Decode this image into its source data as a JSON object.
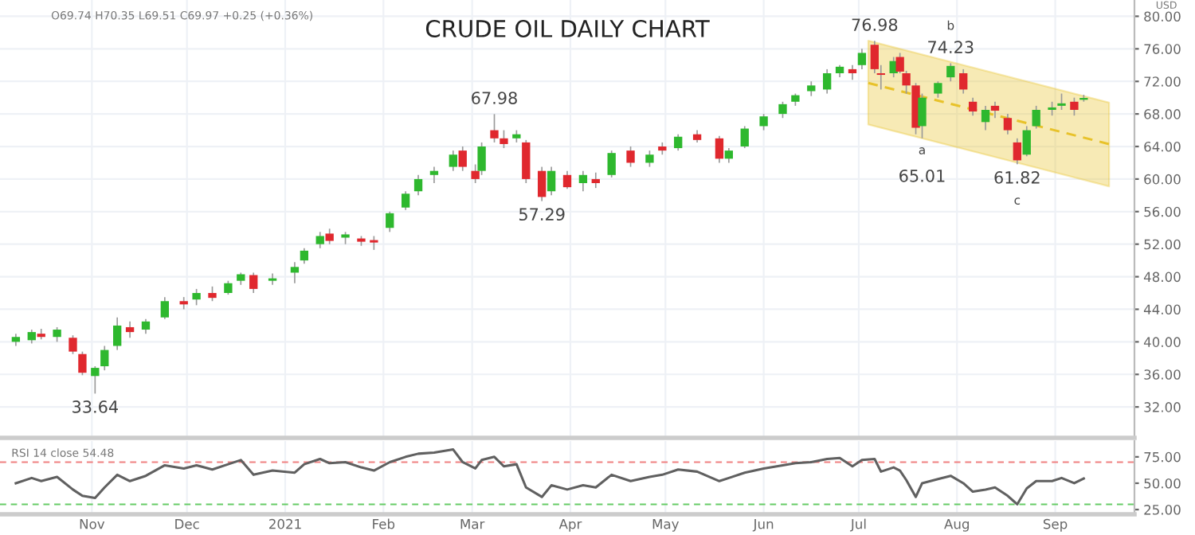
{
  "chart_data": [
    {
      "type": "candlestick",
      "title": "CRUDE OIL DAILY CHART",
      "x": [
        "2020-10-08",
        "2020-10-13",
        "2020-10-16",
        "2020-10-21",
        "2020-10-26",
        "2020-10-29",
        "2020-11-02",
        "2020-11-05",
        "2020-11-09",
        "2020-11-13",
        "2020-11-18",
        "2020-11-24",
        "2020-11-30",
        "2020-12-04",
        "2020-12-09",
        "2020-12-14",
        "2020-12-18",
        "2020-12-22",
        "2020-12-28",
        "2021-01-04",
        "2021-01-07",
        "2021-01-12",
        "2021-01-15",
        "2021-01-20",
        "2021-01-25",
        "2021-01-29",
        "2021-02-03",
        "2021-02-08",
        "2021-02-12",
        "2021-02-17",
        "2021-02-23",
        "2021-02-26",
        "2021-03-02",
        "2021-03-04",
        "2021-03-08",
        "2021-03-11",
        "2021-03-15",
        "2021-03-18",
        "2021-03-23",
        "2021-03-26",
        "2021-03-31",
        "2021-04-05",
        "2021-04-09",
        "2021-04-14",
        "2021-04-20",
        "2021-04-26",
        "2021-04-30",
        "2021-05-05",
        "2021-05-11",
        "2021-05-18",
        "2021-05-21",
        "2021-05-26",
        "2021-06-01",
        "2021-06-07",
        "2021-06-11",
        "2021-06-16",
        "2021-06-21",
        "2021-06-25",
        "2021-06-29",
        "2021-07-02",
        "2021-07-06",
        "2021-07-08",
        "2021-07-12",
        "2021-07-14",
        "2021-07-16",
        "2021-07-19",
        "2021-07-21",
        "2021-07-26",
        "2021-07-30",
        "2021-08-03",
        "2021-08-06",
        "2021-08-10",
        "2021-08-13",
        "2021-08-17",
        "2021-08-20",
        "2021-08-23",
        "2021-08-26",
        "2021-08-31",
        "2021-09-03",
        "2021-09-07",
        "2021-09-10"
      ],
      "ohlc": [
        [
          40.0,
          41.0,
          39.5,
          40.6
        ],
        [
          40.2,
          41.5,
          39.8,
          41.2
        ],
        [
          41.0,
          41.6,
          40.3,
          40.6
        ],
        [
          40.6,
          41.8,
          40.0,
          41.5
        ],
        [
          40.5,
          40.8,
          38.5,
          38.8
        ],
        [
          38.5,
          38.8,
          35.9,
          36.2
        ],
        [
          35.8,
          37.0,
          33.64,
          36.8
        ],
        [
          37.0,
          39.5,
          36.5,
          39.0
        ],
        [
          39.5,
          43.0,
          39.0,
          42.0
        ],
        [
          41.8,
          42.5,
          40.5,
          41.2
        ],
        [
          41.5,
          42.8,
          41.0,
          42.5
        ],
        [
          43.0,
          45.5,
          42.8,
          45.0
        ],
        [
          45.0,
          45.5,
          44.0,
          44.6
        ],
        [
          45.2,
          46.5,
          44.5,
          46.0
        ],
        [
          46.0,
          46.8,
          45.0,
          45.4
        ],
        [
          46.0,
          47.5,
          45.8,
          47.2
        ],
        [
          47.5,
          48.5,
          47.0,
          48.3
        ],
        [
          48.2,
          48.5,
          46.0,
          46.5
        ],
        [
          47.5,
          48.4,
          47.0,
          47.8
        ],
        [
          48.5,
          49.8,
          47.2,
          49.2
        ],
        [
          50.0,
          51.5,
          49.6,
          51.2
        ],
        [
          52.0,
          53.5,
          51.5,
          53.0
        ],
        [
          53.3,
          53.9,
          52.0,
          52.4
        ],
        [
          52.8,
          53.5,
          52.0,
          53.2
        ],
        [
          52.7,
          53.0,
          51.8,
          52.3
        ],
        [
          52.5,
          53.0,
          51.3,
          52.2
        ],
        [
          54.0,
          56.0,
          53.5,
          55.8
        ],
        [
          56.5,
          58.5,
          56.2,
          58.2
        ],
        [
          58.5,
          60.5,
          58.0,
          60.0
        ],
        [
          60.5,
          61.5,
          59.5,
          61.0
        ],
        [
          61.5,
          63.5,
          61.0,
          63.0
        ],
        [
          63.5,
          64.0,
          61.0,
          61.5
        ],
        [
          61.0,
          61.8,
          59.5,
          60.0
        ],
        [
          61.0,
          64.5,
          60.5,
          64.0
        ],
        [
          66.0,
          67.98,
          64.5,
          65.0
        ],
        [
          65.0,
          66.0,
          63.8,
          64.3
        ],
        [
          65.0,
          66.0,
          64.5,
          65.5
        ],
        [
          64.5,
          64.8,
          59.5,
          60.0
        ],
        [
          61.0,
          61.5,
          57.29,
          57.8
        ],
        [
          58.5,
          61.5,
          58.0,
          61.0
        ],
        [
          60.5,
          61.0,
          58.8,
          59.0
        ],
        [
          59.5,
          61.0,
          58.5,
          60.5
        ],
        [
          60.0,
          60.8,
          58.9,
          59.5
        ],
        [
          60.5,
          63.5,
          60.2,
          63.2
        ],
        [
          63.5,
          64.0,
          61.5,
          62.0
        ],
        [
          62.0,
          63.5,
          61.5,
          63.0
        ],
        [
          64.0,
          64.5,
          63.0,
          63.5
        ],
        [
          63.8,
          65.5,
          63.5,
          65.2
        ],
        [
          65.5,
          66.0,
          64.5,
          64.8
        ],
        [
          65.0,
          65.3,
          62.0,
          62.5
        ],
        [
          62.5,
          63.8,
          62.0,
          63.5
        ],
        [
          64.0,
          66.5,
          63.8,
          66.2
        ],
        [
          66.5,
          68.0,
          66.0,
          67.7
        ],
        [
          68.0,
          69.5,
          67.5,
          69.2
        ],
        [
          69.5,
          70.5,
          69.0,
          70.3
        ],
        [
          70.8,
          72.0,
          70.2,
          71.5
        ],
        [
          71.0,
          73.5,
          70.5,
          73.0
        ],
        [
          73.0,
          74.0,
          72.5,
          73.8
        ],
        [
          73.5,
          74.0,
          72.2,
          73.0
        ],
        [
          74.0,
          76.0,
          73.5,
          75.5
        ],
        [
          76.5,
          76.98,
          73.0,
          73.5
        ],
        [
          73.0,
          74.0,
          71.0,
          72.8
        ],
        [
          73.0,
          75.0,
          72.5,
          74.5
        ],
        [
          75.0,
          75.5,
          73.0,
          73.2
        ],
        [
          73.0,
          73.3,
          70.5,
          71.5
        ],
        [
          71.5,
          71.8,
          65.5,
          66.3
        ],
        [
          66.5,
          70.5,
          65.01,
          70.0
        ],
        [
          70.5,
          72.0,
          70.0,
          71.8
        ],
        [
          72.5,
          74.23,
          72.0,
          73.9
        ],
        [
          73.0,
          73.5,
          70.5,
          71.0
        ],
        [
          69.5,
          70.0,
          67.8,
          68.3
        ],
        [
          67.0,
          69.0,
          66.0,
          68.5
        ],
        [
          69.0,
          69.5,
          67.5,
          68.4
        ],
        [
          67.5,
          68.0,
          65.5,
          66.0
        ],
        [
          64.5,
          65.0,
          61.82,
          62.3
        ],
        [
          63.0,
          66.5,
          62.8,
          66.0
        ],
        [
          66.5,
          69.0,
          66.2,
          68.5
        ],
        [
          68.5,
          69.5,
          67.8,
          68.8
        ],
        [
          69.0,
          70.5,
          68.5,
          69.3
        ],
        [
          69.5,
          70.0,
          67.8,
          68.5
        ],
        [
          69.74,
          70.35,
          69.51,
          69.97
        ]
      ],
      "colors": [
        "#2eb82e",
        "#2eb82e",
        "#e0282e",
        "#2eb82e",
        "#e0282e",
        "#e0282e",
        "#2eb82e",
        "#2eb82e",
        "#2eb82e",
        "#e0282e",
        "#2eb82e",
        "#2eb82e",
        "#e0282e",
        "#2eb82e",
        "#e0282e",
        "#2eb82e",
        "#2eb82e",
        "#e0282e",
        "#2eb82e",
        "#2eb82e",
        "#2eb82e",
        "#2eb82e",
        "#e0282e",
        "#2eb82e",
        "#e0282e",
        "#e0282e",
        "#2eb82e",
        "#2eb82e",
        "#2eb82e",
        "#2eb82e",
        "#2eb82e",
        "#e0282e",
        "#e0282e",
        "#2eb82e",
        "#e0282e",
        "#e0282e",
        "#2eb82e",
        "#e0282e",
        "#e0282e",
        "#2eb82e",
        "#e0282e",
        "#2eb82e",
        "#e0282e",
        "#2eb82e",
        "#e0282e",
        "#2eb82e",
        "#e0282e",
        "#2eb82e",
        "#e0282e",
        "#e0282e",
        "#2eb82e",
        "#2eb82e",
        "#2eb82e",
        "#2eb82e",
        "#2eb82e",
        "#2eb82e",
        "#2eb82e",
        "#2eb82e",
        "#e0282e",
        "#2eb82e",
        "#e0282e",
        "#e0282e",
        "#2eb82e",
        "#e0282e",
        "#e0282e",
        "#e0282e",
        "#2eb82e",
        "#2eb82e",
        "#2eb82e",
        "#e0282e",
        "#e0282e",
        "#2eb82e",
        "#e0282e",
        "#e0282e",
        "#e0282e",
        "#2eb82e",
        "#2eb82e",
        "#2eb82e",
        "#2eb82e",
        "#e0282e",
        "#2eb82e"
      ],
      "series": [
        {
          "type": "line",
          "x": [
            "2021-07-04",
            "2021-09-18"
          ],
          "values": [
            71.8,
            64.3
          ],
          "lower": [
            66.7,
            59.1
          ],
          "upper": [
            77.0,
            69.4
          ],
          "color": "#e8c22a",
          "line_style": "dashed"
        }
      ],
      "xlim": [
        "2020-10-03",
        "2021-09-26"
      ],
      "xticks": [
        {
          "value": "2020-11-01",
          "label": null
        },
        {
          "value": "2020-12-01",
          "label": null
        },
        {
          "value": "2021-01-01",
          "label": null
        },
        {
          "value": "2021-02-01",
          "label": null
        },
        {
          "value": "2021-03-01",
          "label": null
        },
        {
          "value": "2021-04-01",
          "label": null
        },
        {
          "value": "2021-05-01",
          "label": null
        },
        {
          "value": "2021-06-01",
          "label": null
        },
        {
          "value": "2021-07-01",
          "label": null
        },
        {
          "value": "2021-08-01",
          "label": null
        },
        {
          "value": "2021-09-01",
          "label": null
        }
      ],
      "ylim": [
        28.2,
        82
      ],
      "yticks": [
        {
          "value": 32,
          "label": "32.00"
        },
        {
          "value": 36,
          "label": "36.00"
        },
        {
          "value": 40,
          "label": "40.00"
        },
        {
          "value": 44,
          "label": "44.00"
        },
        {
          "value": 48,
          "label": "48.00"
        },
        {
          "value": 52,
          "label": "52.00"
        },
        {
          "value": 56,
          "label": "56.00"
        },
        {
          "value": 60,
          "label": "60.00"
        },
        {
          "value": 64,
          "label": "64.00"
        },
        {
          "value": 68,
          "label": "68.00"
        },
        {
          "value": 72,
          "label": "72.00"
        },
        {
          "value": 76,
          "label": "76.00"
        },
        {
          "value": 80,
          "label": "80.00"
        }
      ],
      "tick_labels": "y",
      "grid": true,
      "annotations": [
        "O69.74 H70.35 L69.51 C69.97 +0.25 (+0.36%)",
        "USD",
        {
          "text": "33.64",
          "x": "2020-11-02",
          "y": 33.64
        },
        {
          "text": "67.98",
          "x": "2021-03-08",
          "y": 67.98
        },
        {
          "text": "57.29",
          "x": "2021-03-23",
          "y": 57.29
        },
        {
          "text": "76.98",
          "x": "2021-07-06",
          "y": 76.98
        },
        {
          "text": "74.23",
          "x": "2021-07-30",
          "y": 74.23
        },
        {
          "text": "b",
          "x": "2021-07-30",
          "y": 74.23
        },
        {
          "text": "a",
          "x": "2021-07-21",
          "y": 65.01
        },
        {
          "text": "65.01",
          "x": "2021-07-21",
          "y": 65.01
        },
        {
          "text": "61.82",
          "x": "2021-08-20",
          "y": 61.82
        },
        {
          "text": "c",
          "x": "2021-08-20",
          "y": 61.82
        }
      ]
    },
    {
      "type": "line",
      "title": "RSI 14 close 54.48",
      "series": [
        {
          "color": "#606060",
          "x": [
            "2020-10-08",
            "2020-10-13",
            "2020-10-16",
            "2020-10-21",
            "2020-10-26",
            "2020-10-29",
            "2020-11-02",
            "2020-11-05",
            "2020-11-09",
            "2020-11-13",
            "2020-11-18",
            "2020-11-24",
            "2020-11-30",
            "2020-12-04",
            "2020-12-09",
            "2020-12-14",
            "2020-12-18",
            "2020-12-22",
            "2020-12-28",
            "2021-01-04",
            "2021-01-07",
            "2021-01-12",
            "2021-01-15",
            "2021-01-20",
            "2021-01-25",
            "2021-01-29",
            "2021-02-03",
            "2021-02-08",
            "2021-02-12",
            "2021-02-17",
            "2021-02-23",
            "2021-02-26",
            "2021-03-02",
            "2021-03-04",
            "2021-03-08",
            "2021-03-11",
            "2021-03-15",
            "2021-03-18",
            "2021-03-23",
            "2021-03-26",
            "2021-03-31",
            "2021-04-05",
            "2021-04-09",
            "2021-04-14",
            "2021-04-20",
            "2021-04-26",
            "2021-04-30",
            "2021-05-05",
            "2021-05-11",
            "2021-05-18",
            "2021-05-21",
            "2021-05-26",
            "2021-06-01",
            "2021-06-07",
            "2021-06-11",
            "2021-06-16",
            "2021-06-21",
            "2021-06-25",
            "2021-06-29",
            "2021-07-02",
            "2021-07-06",
            "2021-07-08",
            "2021-07-12",
            "2021-07-14",
            "2021-07-16",
            "2021-07-19",
            "2021-07-21",
            "2021-07-26",
            "2021-07-30",
            "2021-08-03",
            "2021-08-06",
            "2021-08-10",
            "2021-08-13",
            "2021-08-17",
            "2021-08-20",
            "2021-08-23",
            "2021-08-26",
            "2021-08-31",
            "2021-09-03",
            "2021-09-07",
            "2021-09-10"
          ],
          "values": [
            50,
            55,
            52,
            56,
            44,
            38,
            36,
            46,
            58,
            52,
            57,
            67,
            64,
            67,
            63,
            68,
            72,
            58,
            62,
            60,
            68,
            73,
            69,
            70,
            65,
            62,
            70,
            75,
            78,
            79,
            82,
            70,
            64,
            72,
            75,
            66,
            68,
            46,
            37,
            48,
            44,
            48,
            46,
            58,
            52,
            56,
            58,
            63,
            61,
            52,
            55,
            60,
            64,
            67,
            69,
            70,
            73,
            74,
            66,
            72,
            73,
            61,
            65,
            62,
            53,
            37,
            50,
            54,
            57,
            50,
            42,
            44,
            46,
            38,
            30,
            45,
            52,
            52,
            55,
            50,
            54.48
          ]
        }
      ],
      "xlim": [
        "2020-10-03",
        "2021-09-26"
      ],
      "xticks": [
        {
          "value": "2020-11-01",
          "label": "Nov"
        },
        {
          "value": "2020-12-01",
          "label": "Dec"
        },
        {
          "value": "2021-01-01",
          "label": "2021"
        },
        {
          "value": "2021-02-01",
          "label": "Feb"
        },
        {
          "value": "2021-03-01",
          "label": "Mar"
        },
        {
          "value": "2021-04-01",
          "label": "Apr"
        },
        {
          "value": "2021-05-01",
          "label": "May"
        },
        {
          "value": "2021-06-01",
          "label": "Jun"
        },
        {
          "value": "2021-07-01",
          "label": "Jul"
        },
        {
          "value": "2021-08-01",
          "label": "Aug"
        },
        {
          "value": "2021-09-01",
          "label": "Sep"
        }
      ],
      "ylim": [
        20.5,
        90
      ],
      "yticks": [
        {
          "value": 25,
          "label": "25.00"
        },
        {
          "value": 50,
          "label": "50.00"
        },
        {
          "value": 75,
          "label": "75.00"
        }
      ],
      "grid": "x",
      "ref_lines": [
        {
          "axis": "y",
          "value": 70,
          "color": "#f08080",
          "line_style": "dashed"
        },
        {
          "axis": "y",
          "value": 30,
          "color": "#66cc66",
          "line_style": "dashed"
        }
      ]
    }
  ]
}
